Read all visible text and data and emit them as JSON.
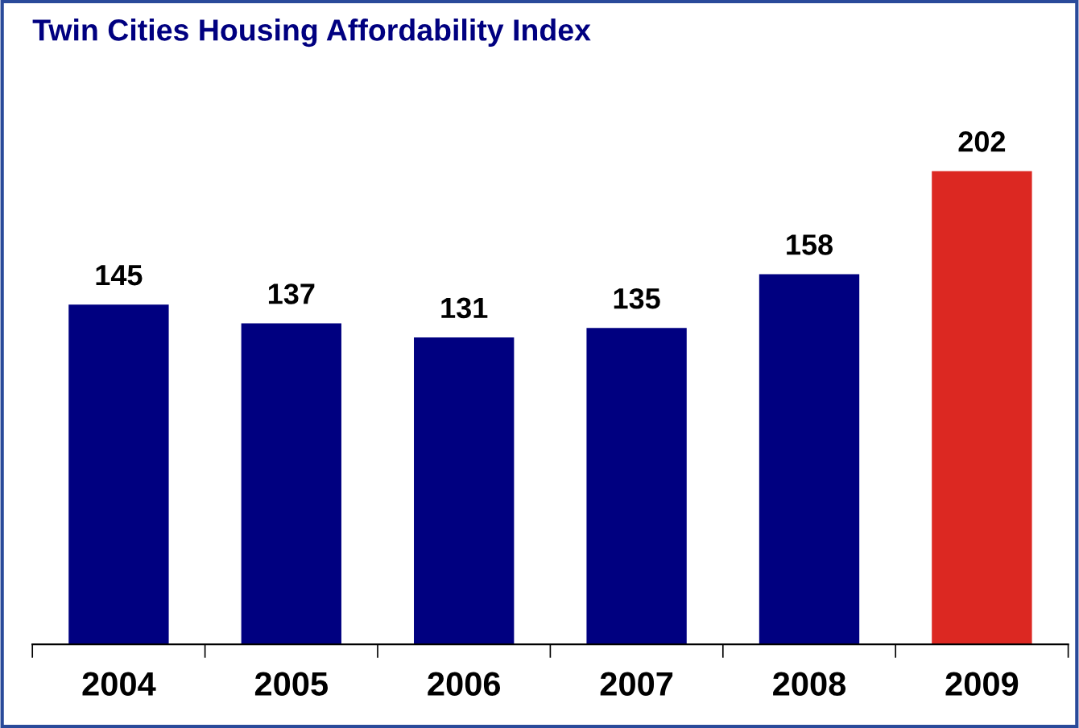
{
  "chart_data": {
    "type": "bar",
    "title": "Twin Cities Housing Affordability Index",
    "categories": [
      "2004",
      "2005",
      "2006",
      "2007",
      "2008",
      "2009"
    ],
    "values": [
      145,
      137,
      131,
      135,
      158,
      202
    ],
    "colors": [
      "#000080",
      "#000080",
      "#000080",
      "#000080",
      "#000080",
      "#dc2822"
    ],
    "data_labels": true,
    "grid": false,
    "legend": false,
    "tick_labels": "x"
  }
}
